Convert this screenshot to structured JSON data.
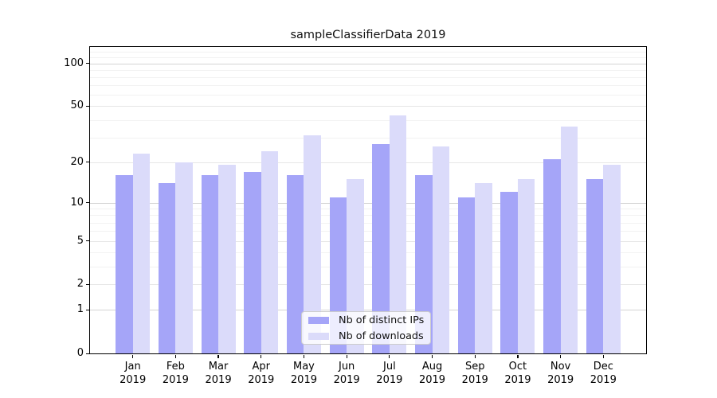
{
  "chart_data": {
    "type": "bar",
    "title": "sampleClassifierData 2019",
    "categories": [
      "Jan",
      "Feb",
      "Mar",
      "Apr",
      "May",
      "Jun",
      "Jul",
      "Aug",
      "Sep",
      "Oct",
      "Nov",
      "Dec"
    ],
    "category_year": "2019",
    "series": [
      {
        "name": "Nb of distinct IPs",
        "color": "#a5a5f8",
        "values": [
          16,
          14,
          16,
          17,
          16,
          11,
          27,
          16,
          11,
          12,
          21,
          15
        ]
      },
      {
        "name": "Nb of downloads",
        "color": "#dbdbfa",
        "values": [
          23,
          20,
          19,
          24,
          31,
          15,
          43,
          26,
          14,
          15,
          36,
          19
        ]
      }
    ],
    "y_scale": "log1p",
    "y_ticks_labeled": [
      0,
      1,
      2,
      5,
      10,
      20,
      50,
      100
    ],
    "y_ticks_decade": [
      1,
      10,
      100
    ],
    "y_minor_gridlines": [
      3,
      4,
      6,
      7,
      8,
      9,
      30,
      40,
      60,
      70,
      80,
      90,
      110,
      120
    ],
    "ylim": [
      0,
      130
    ],
    "xlabel": "",
    "ylabel": "",
    "grid": true,
    "legend": {
      "position": "lower center",
      "entries": [
        "Nb of distinct IPs",
        "Nb of downloads"
      ]
    }
  },
  "colors": {
    "bar_distinct_ips": "#a5a5f8",
    "bar_downloads": "#dbdbfa",
    "grid_major": "#d4d4d4",
    "grid_minor": "#f2f2f2",
    "spine": "#000000",
    "background": "#ffffff"
  }
}
